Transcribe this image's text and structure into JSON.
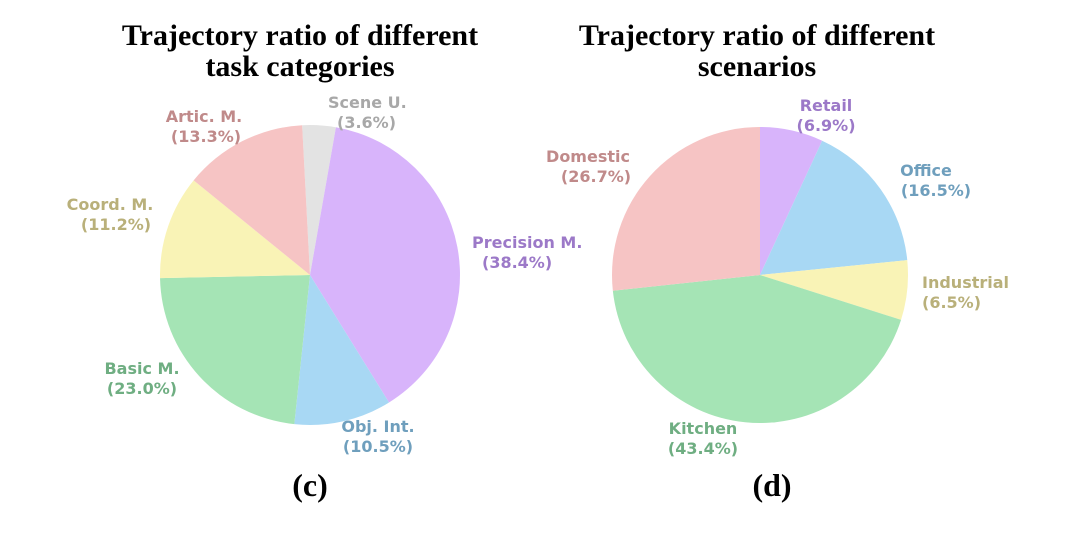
{
  "chart_data": [
    {
      "type": "pie",
      "title_lines": [
        "Trajectory ratio of different",
        "task categories"
      ],
      "panel_label": "(c)",
      "slices": [
        {
          "label": "Scene U.",
          "percent_text": "(3.6%)",
          "value": 3.6,
          "color": "#e3e3e3",
          "label_color": "#a8a8a8"
        },
        {
          "label": "Precision M.",
          "percent_text": "(38.4%)",
          "value": 38.4,
          "color": "#d8b4fb",
          "label_color": "#9c79c8"
        },
        {
          "label": "Obj. Int.",
          "percent_text": "(10.5%)",
          "value": 10.5,
          "color": "#a8d8f4",
          "label_color": "#6f9fbd"
        },
        {
          "label": "Basic M.",
          "percent_text": "(23.0%)",
          "value": 23.0,
          "color": "#a5e4b5",
          "label_color": "#6fae82"
        },
        {
          "label": "Coord. M.",
          "percent_text": "(11.2%)",
          "value": 11.2,
          "color": "#f9f3b6",
          "label_color": "#b9b07a"
        },
        {
          "label": "Artic. M.",
          "percent_text": "(13.3%)",
          "value": 13.3,
          "color": "#f6c4c4",
          "label_color": "#c08a8a"
        }
      ]
    },
    {
      "type": "pie",
      "title_lines": [
        "Trajectory ratio of different",
        "scenarios"
      ],
      "panel_label": "(d)",
      "slices": [
        {
          "label": "Retail",
          "percent_text": "(6.9%)",
          "value": 6.9,
          "color": "#d8b4fb",
          "label_color": "#9c79c8"
        },
        {
          "label": "Office",
          "percent_text": "(16.5%)",
          "value": 16.5,
          "color": "#a8d8f4",
          "label_color": "#6f9fbd"
        },
        {
          "label": "Industrial",
          "percent_text": "(6.5%)",
          "value": 6.5,
          "color": "#f9f3b6",
          "label_color": "#b9b07a"
        },
        {
          "label": "Kitchen",
          "percent_text": "(43.4%)",
          "value": 43.4,
          "color": "#a5e4b5",
          "label_color": "#6fae82"
        },
        {
          "label": "Domestic",
          "percent_text": "(26.7%)",
          "value": 26.7,
          "color": "#f6c4c4",
          "label_color": "#c08a8a"
        }
      ]
    }
  ]
}
